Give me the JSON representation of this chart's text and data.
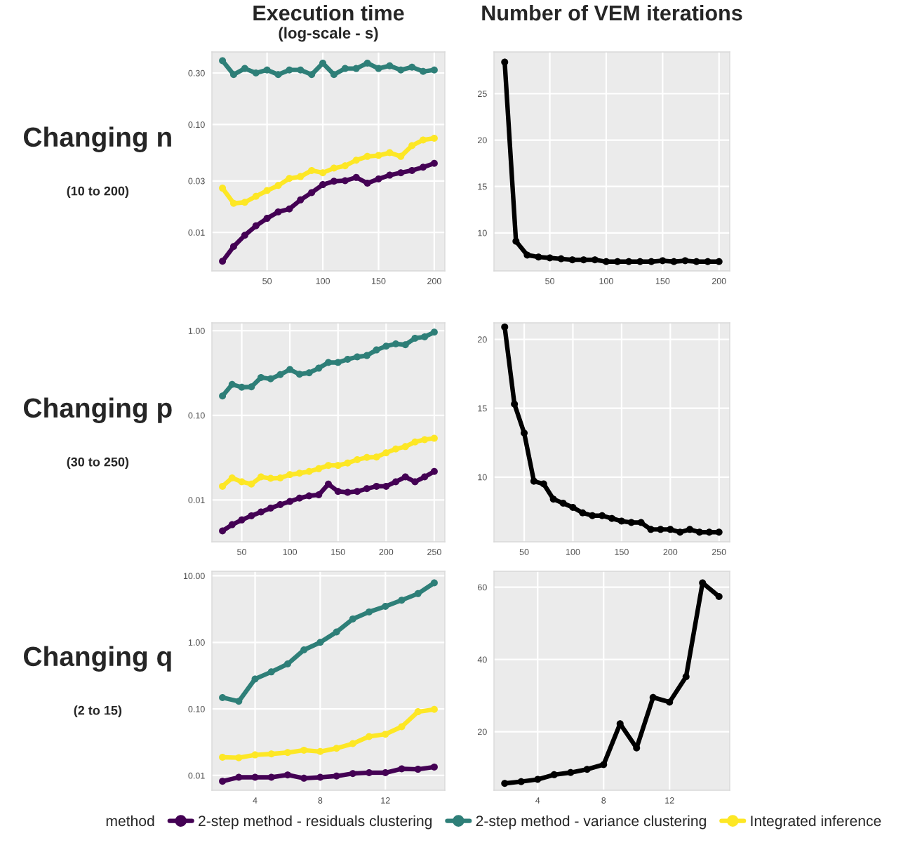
{
  "chart_data": [
    {
      "type": "line",
      "title": "Execution time",
      "subtitle": "(log-scale - s)",
      "annotations": [
        "Changing n",
        "(10 to 200)"
      ],
      "legend_title": "method",
      "legend": "bottom",
      "log": true,
      "grid": true,
      "marker": "circle",
      "x": [
        10,
        20,
        30,
        40,
        50,
        60,
        70,
        80,
        90,
        100,
        110,
        120,
        130,
        140,
        150,
        160,
        170,
        180,
        190,
        200
      ],
      "xlim": [
        0.5,
        209.5
      ],
      "xticks": [
        50,
        100,
        150,
        200
      ],
      "ylim": [
        0.0044,
        0.47
      ],
      "yticks": [
        {
          "value": 0.01,
          "label": "0.01"
        },
        {
          "value": 0.03,
          "label": "0.03"
        },
        {
          "value": 0.1,
          "label": "0.10"
        },
        {
          "value": 0.3,
          "label": "0.30"
        }
      ],
      "series": [
        {
          "name": "2-step method - residuals clustering",
          "color": "#440154",
          "values": [
            0.0054,
            0.0074,
            0.0094,
            0.0115,
            0.0135,
            0.0155,
            0.0165,
            0.02,
            0.0234,
            0.0277,
            0.0298,
            0.0301,
            0.0323,
            0.0286,
            0.0313,
            0.0339,
            0.0357,
            0.0375,
            0.0402,
            0.0436
          ]
        },
        {
          "name": "2-step method - variance clustering",
          "color": "#2e7f78",
          "values": [
            0.39,
            0.29,
            0.33,
            0.3,
            0.32,
            0.29,
            0.32,
            0.32,
            0.29,
            0.37,
            0.29,
            0.33,
            0.33,
            0.37,
            0.33,
            0.35,
            0.32,
            0.34,
            0.31,
            0.32
          ]
        },
        {
          "name": "Integrated inference",
          "color": "#fde725",
          "values": [
            0.0257,
            0.0186,
            0.019,
            0.0216,
            0.0244,
            0.0272,
            0.0316,
            0.0329,
            0.0375,
            0.0357,
            0.0394,
            0.0414,
            0.0467,
            0.0506,
            0.0516,
            0.0548,
            0.0506,
            0.0637,
            0.0719,
            0.0745
          ]
        }
      ]
    },
    {
      "type": "line",
      "title": "Number of VEM iterations",
      "grid": true,
      "marker": "circle",
      "x": [
        10,
        20,
        30,
        40,
        50,
        60,
        70,
        80,
        90,
        100,
        110,
        120,
        130,
        140,
        150,
        160,
        170,
        180,
        190,
        200
      ],
      "xlim": [
        0.5,
        209.5
      ],
      "xticks": [
        50,
        100,
        150,
        200
      ],
      "ylim": [
        5.9,
        29.5
      ],
      "yticks": [
        10,
        15,
        20,
        25
      ],
      "series": [
        {
          "color": "#000000",
          "values": [
            28.4,
            9.1,
            7.6,
            7.4,
            7.3,
            7.2,
            7.1,
            7.1,
            7.1,
            6.9,
            6.9,
            6.9,
            6.9,
            6.9,
            7.0,
            6.9,
            7.0,
            6.9,
            6.9,
            6.9
          ]
        }
      ]
    },
    {
      "type": "line",
      "annotations": [
        "Changing p",
        "(30 to 250)"
      ],
      "log": true,
      "grid": true,
      "marker": "circle",
      "x": [
        30,
        40,
        50,
        60,
        70,
        80,
        90,
        100,
        110,
        120,
        130,
        140,
        150,
        160,
        170,
        180,
        190,
        200,
        210,
        220,
        230,
        240,
        250
      ],
      "xlim": [
        19,
        261
      ],
      "xticks": [
        50,
        100,
        150,
        200,
        250
      ],
      "ylim": [
        0.0032,
        1.24
      ],
      "yticks": [
        {
          "value": 0.01,
          "label": "0.01"
        },
        {
          "value": 0.1,
          "label": "0.10"
        },
        {
          "value": 1,
          "label": "1.00"
        }
      ],
      "series": [
        {
          "color": "#440154",
          "values": [
            0.0043,
            0.0051,
            0.0058,
            0.0065,
            0.0072,
            0.008,
            0.0088,
            0.0096,
            0.0105,
            0.0112,
            0.0115,
            0.0154,
            0.0126,
            0.0123,
            0.0126,
            0.0136,
            0.0145,
            0.0145,
            0.0164,
            0.0187,
            0.0164,
            0.0187,
            0.0217
          ]
        },
        {
          "color": "#2e7f78",
          "values": [
            0.169,
            0.232,
            0.215,
            0.217,
            0.28,
            0.27,
            0.303,
            0.348,
            0.306,
            0.318,
            0.361,
            0.421,
            0.421,
            0.46,
            0.491,
            0.509,
            0.593,
            0.657,
            0.7,
            0.683,
            0.816,
            0.848,
            0.962
          ]
        },
        {
          "color": "#fde725",
          "values": [
            0.0145,
            0.0182,
            0.0164,
            0.0154,
            0.0187,
            0.018,
            0.0182,
            0.0199,
            0.0207,
            0.0217,
            0.0234,
            0.0256,
            0.0256,
            0.0273,
            0.0299,
            0.0318,
            0.0322,
            0.0361,
            0.04,
            0.0427,
            0.0485,
            0.0516,
            0.0536
          ]
        }
      ]
    },
    {
      "type": "line",
      "grid": true,
      "marker": "circle",
      "x": [
        30,
        40,
        50,
        60,
        70,
        80,
        90,
        100,
        110,
        120,
        130,
        140,
        150,
        160,
        170,
        180,
        190,
        200,
        210,
        220,
        230,
        240,
        250
      ],
      "xlim": [
        19,
        261
      ],
      "xticks": [
        50,
        100,
        150,
        200,
        250
      ],
      "ylim": [
        5.3,
        21.2
      ],
      "yticks": [
        10,
        15,
        20
      ],
      "series": [
        {
          "color": "#000000",
          "values": [
            20.9,
            15.3,
            13.2,
            9.7,
            9.5,
            8.4,
            8.1,
            7.8,
            7.4,
            7.2,
            7.2,
            7.0,
            6.8,
            6.7,
            6.7,
            6.2,
            6.2,
            6.2,
            6.0,
            6.2,
            6.0,
            6.0,
            6.0
          ]
        }
      ]
    },
    {
      "type": "line",
      "annotations": [
        "Changing q",
        "(2 to 15)"
      ],
      "log": true,
      "grid": true,
      "marker": "circle",
      "x": [
        2,
        3,
        4,
        5,
        6,
        7,
        8,
        9,
        10,
        11,
        12,
        13,
        14,
        15
      ],
      "xlim": [
        1.35,
        15.65
      ],
      "xticks": [
        4,
        8,
        12
      ],
      "ylim": [
        0.006,
        11.7
      ],
      "yticks": [
        {
          "value": 0.01,
          "label": "0.01"
        },
        {
          "value": 0.1,
          "label": "0.10"
        },
        {
          "value": 1,
          "label": "1.00"
        },
        {
          "value": 10,
          "label": "10.00"
        }
      ],
      "series": [
        {
          "color": "#440154",
          "values": [
            0.0082,
            0.0094,
            0.0094,
            0.0094,
            0.0102,
            0.0091,
            0.0094,
            0.0098,
            0.0107,
            0.011,
            0.011,
            0.0126,
            0.0124,
            0.0134
          ]
        },
        {
          "color": "#2e7f78",
          "values": [
            0.148,
            0.13,
            0.282,
            0.36,
            0.474,
            0.771,
            1.0,
            1.43,
            2.25,
            2.87,
            3.48,
            4.31,
            5.4,
            7.83
          ]
        },
        {
          "color": "#fde725",
          "values": [
            0.0188,
            0.0185,
            0.0204,
            0.0211,
            0.0221,
            0.024,
            0.0229,
            0.0256,
            0.0301,
            0.0385,
            0.0417,
            0.054,
            0.0908,
            0.0984
          ]
        }
      ]
    },
    {
      "type": "line",
      "grid": true,
      "marker": "circle",
      "x": [
        2,
        3,
        4,
        5,
        6,
        7,
        8,
        9,
        10,
        11,
        12,
        13,
        14,
        15
      ],
      "xlim": [
        1.35,
        15.65
      ],
      "xticks": [
        4,
        8,
        12
      ],
      "ylim": [
        3.8,
        64.4
      ],
      "yticks": [
        20,
        40,
        60
      ],
      "series": [
        {
          "color": "#000000",
          "values": [
            5.7,
            6.2,
            6.8,
            8.1,
            8.7,
            9.6,
            10.9,
            22.2,
            15.5,
            29.5,
            28.2,
            35.2,
            61.2,
            57.4
          ]
        }
      ]
    }
  ]
}
